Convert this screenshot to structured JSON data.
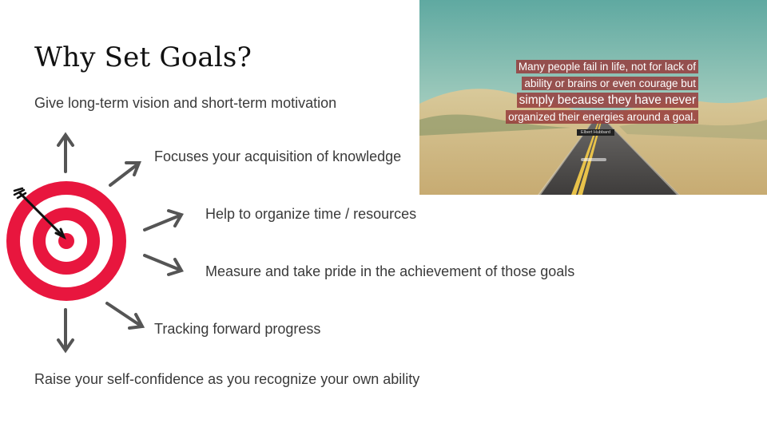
{
  "slide": {
    "title": "Why Set Goals?",
    "points": [
      "Give long-term vision and short-term motivation",
      "Focuses your acquisition of knowledge",
      "Help to organize time / resources",
      "Measure and take pride in the achievement of those goals",
      "Tracking forward progress",
      "Raise your self-confidence as you recognize your own ability"
    ]
  },
  "photo": {
    "quote_lines": [
      "Many people fail in life, not for lack of",
      "ability or brains or even courage but",
      "simply because they have never",
      "organized their energies around a goal."
    ],
    "author": "Elbert Hubbard"
  },
  "colors": {
    "target_red": "#e8163e",
    "arrow_gray": "#555555",
    "quote_highlight": "#963c3c"
  },
  "icons": {
    "target": "target-bullseye-icon",
    "arrows": "direction-arrow-icon"
  }
}
